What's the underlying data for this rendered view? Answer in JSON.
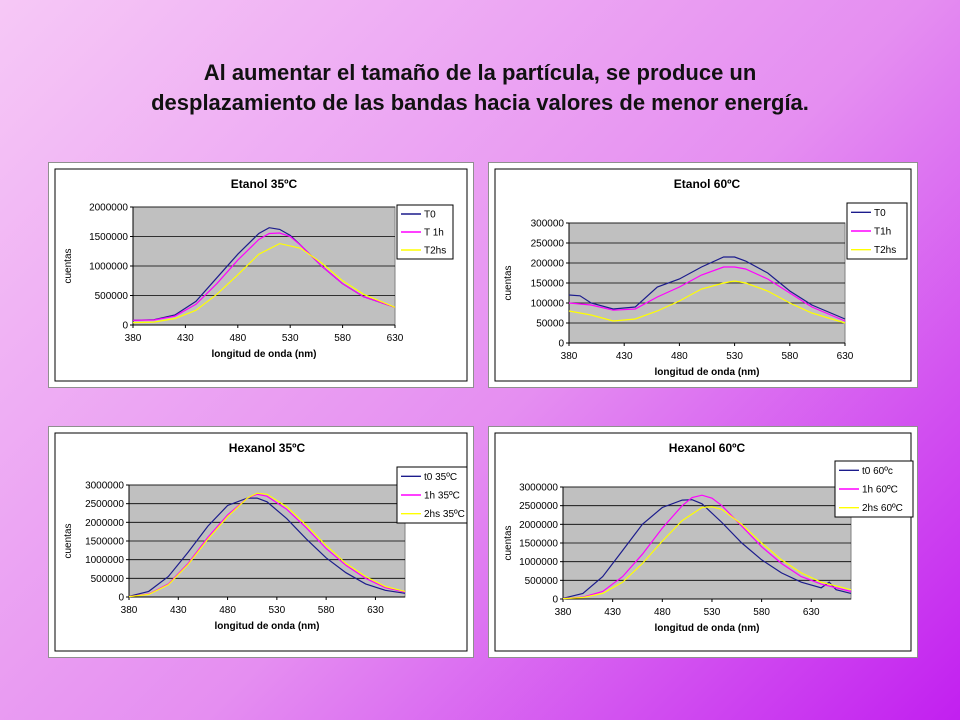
{
  "slide": {
    "title_line1": "Al aumentar el tamaño de la partícula, se produce un",
    "title_line2": "desplazamiento de las bandas hacia valores de menor energía."
  },
  "colors": {
    "series_1": "#1c1c8c",
    "series_2": "#ff00ff",
    "series_3": "#ffff00",
    "plot_bg": "#c0c0c0"
  },
  "chart_data": [
    {
      "type": "line",
      "title": "Etanol 35ºC",
      "xlabel": "longitud de onda (nm)",
      "ylabel": "cuentas",
      "xlim": [
        380,
        630
      ],
      "ylim": [
        0,
        2000000
      ],
      "xticks": [
        380,
        430,
        480,
        530,
        580,
        630
      ],
      "yticks": [
        0,
        500000,
        1000000,
        1500000,
        2000000
      ],
      "legend_position": "top-right",
      "grid": true,
      "series": [
        {
          "name": "T0",
          "color": "#1c1c8c",
          "x": [
            380,
            400,
            420,
            440,
            460,
            480,
            500,
            510,
            520,
            530,
            540,
            560,
            580,
            600,
            630
          ],
          "y": [
            80000,
            90000,
            170000,
            400000,
            800000,
            1200000,
            1550000,
            1650000,
            1620000,
            1520000,
            1350000,
            1000000,
            700000,
            480000,
            300000
          ]
        },
        {
          "name": "T 1h",
          "color": "#ff00ff",
          "x": [
            380,
            400,
            420,
            440,
            460,
            480,
            500,
            510,
            520,
            530,
            540,
            560,
            580,
            600,
            630
          ],
          "y": [
            80000,
            85000,
            150000,
            350000,
            700000,
            1100000,
            1450000,
            1550000,
            1560000,
            1500000,
            1350000,
            1000000,
            700000,
            480000,
            300000
          ]
        },
        {
          "name": "T2hs",
          "color": "#ffff00",
          "x": [
            380,
            400,
            420,
            440,
            460,
            480,
            500,
            520,
            540,
            560,
            580,
            600,
            630
          ],
          "y": [
            40000,
            50000,
            110000,
            250000,
            520000,
            850000,
            1200000,
            1380000,
            1300000,
            1050000,
            750000,
            520000,
            300000
          ]
        }
      ]
    },
    {
      "type": "line",
      "title": "Etanol 60ºC",
      "xlabel": "longitud de onda (nm)",
      "ylabel": "cuentas",
      "xlim": [
        380,
        630
      ],
      "ylim": [
        0,
        300000
      ],
      "xticks": [
        380,
        430,
        480,
        530,
        580,
        630
      ],
      "yticks": [
        0,
        50000,
        100000,
        150000,
        200000,
        250000,
        300000
      ],
      "legend_position": "top-right",
      "grid": true,
      "series": [
        {
          "name": "T0",
          "color": "#1c1c8c",
          "x": [
            380,
            390,
            400,
            420,
            440,
            460,
            480,
            500,
            520,
            530,
            540,
            560,
            580,
            600,
            630
          ],
          "y": [
            120000,
            118000,
            100000,
            85000,
            90000,
            140000,
            160000,
            190000,
            215000,
            215000,
            205000,
            175000,
            130000,
            95000,
            60000
          ]
        },
        {
          "name": "T1h",
          "color": "#ff00ff",
          "x": [
            380,
            400,
            420,
            440,
            460,
            480,
            500,
            520,
            530,
            540,
            560,
            580,
            600,
            630
          ],
          "y": [
            100000,
            95000,
            82000,
            85000,
            115000,
            140000,
            170000,
            190000,
            190000,
            185000,
            160000,
            125000,
            90000,
            55000
          ]
        },
        {
          "name": "T2hs",
          "color": "#ffff00",
          "x": [
            380,
            400,
            420,
            440,
            460,
            480,
            500,
            520,
            530,
            540,
            560,
            580,
            600,
            630
          ],
          "y": [
            80000,
            70000,
            55000,
            60000,
            80000,
            105000,
            135000,
            150000,
            155000,
            150000,
            130000,
            100000,
            75000,
            50000
          ]
        }
      ]
    },
    {
      "type": "line",
      "title": "Hexanol 35ºC",
      "xlabel": "longitud de onda (nm)",
      "ylabel": "cuentas",
      "xlim": [
        380,
        660
      ],
      "ylim": [
        0,
        3000000
      ],
      "xticks": [
        380,
        430,
        480,
        530,
        580,
        630
      ],
      "yticks": [
        0,
        500000,
        1000000,
        1500000,
        2000000,
        2500000,
        3000000
      ],
      "legend_position": "top-right",
      "grid": true,
      "series": [
        {
          "name": "t0 35ºC",
          "color": "#1c1c8c",
          "x": [
            380,
            400,
            420,
            440,
            460,
            480,
            500,
            510,
            520,
            540,
            560,
            580,
            600,
            620,
            640,
            660
          ],
          "y": [
            20000,
            150000,
            550000,
            1200000,
            1900000,
            2450000,
            2650000,
            2650000,
            2550000,
            2100000,
            1550000,
            1050000,
            650000,
            350000,
            180000,
            100000
          ]
        },
        {
          "name": "1h 35ºC",
          "color": "#ff00ff",
          "x": [
            380,
            400,
            420,
            440,
            460,
            480,
            500,
            510,
            520,
            540,
            560,
            580,
            600,
            620,
            640,
            660
          ],
          "y": [
            10000,
            80000,
            350000,
            900000,
            1600000,
            2200000,
            2650000,
            2750000,
            2700000,
            2350000,
            1850000,
            1300000,
            850000,
            500000,
            250000,
            130000
          ]
        },
        {
          "name": "2hs 35ºC",
          "color": "#ffff00",
          "x": [
            380,
            400,
            420,
            440,
            460,
            480,
            500,
            510,
            520,
            540,
            560,
            580,
            600,
            620,
            640,
            660
          ],
          "y": [
            10000,
            70000,
            330000,
            870000,
            1550000,
            2150000,
            2650000,
            2780000,
            2750000,
            2420000,
            1920000,
            1380000,
            900000,
            550000,
            280000,
            150000
          ]
        }
      ]
    },
    {
      "type": "line",
      "title": "Hexanol 60ºC",
      "xlabel": "longitud de onda (nm)",
      "ylabel": "cuentas",
      "xlim": [
        380,
        670
      ],
      "ylim": [
        0,
        3000000
      ],
      "xticks": [
        380,
        430,
        480,
        530,
        580,
        630
      ],
      "yticks": [
        0,
        500000,
        1000000,
        1500000,
        2000000,
        2500000,
        3000000
      ],
      "legend_position": "top-right",
      "grid": true,
      "series": [
        {
          "name": "t0 60ºc",
          "color": "#1c1c8c",
          "x": [
            380,
            400,
            420,
            440,
            460,
            480,
            500,
            510,
            520,
            540,
            560,
            580,
            600,
            620,
            640,
            648,
            655,
            670
          ],
          "y": [
            20000,
            150000,
            600000,
            1300000,
            2000000,
            2450000,
            2650000,
            2660000,
            2550000,
            2050000,
            1500000,
            1050000,
            700000,
            450000,
            300000,
            450000,
            250000,
            150000
          ]
        },
        {
          "name": "1h 60ºC",
          "color": "#ff00ff",
          "x": [
            380,
            400,
            420,
            440,
            460,
            480,
            500,
            510,
            520,
            530,
            540,
            560,
            580,
            600,
            620,
            640,
            670
          ],
          "y": [
            10000,
            50000,
            200000,
            600000,
            1200000,
            1900000,
            2500000,
            2720000,
            2780000,
            2700000,
            2500000,
            1950000,
            1400000,
            950000,
            600000,
            400000,
            200000
          ]
        },
        {
          "name": "2hs 60ºC",
          "color": "#ffff00",
          "x": [
            380,
            400,
            420,
            440,
            460,
            480,
            500,
            520,
            530,
            540,
            560,
            580,
            600,
            620,
            640,
            670
          ],
          "y": [
            10000,
            40000,
            150000,
            450000,
            950000,
            1550000,
            2100000,
            2450000,
            2470000,
            2400000,
            2000000,
            1500000,
            1050000,
            700000,
            450000,
            250000
          ]
        }
      ]
    }
  ]
}
